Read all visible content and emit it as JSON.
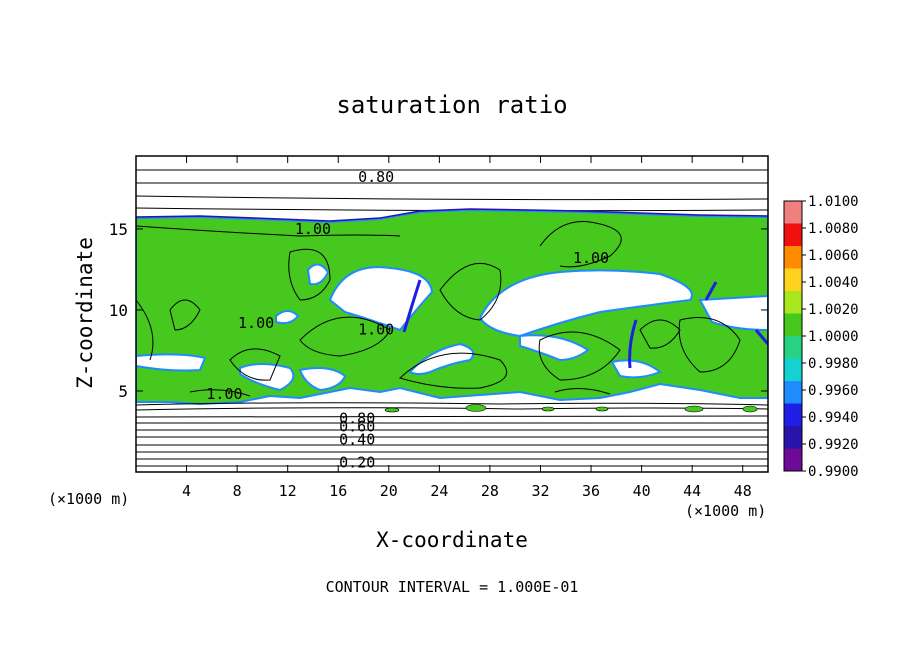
{
  "chart_data": {
    "type": "heatmap",
    "title": "saturation ratio",
    "xlabel": "X-coordinate",
    "ylabel": "Z-coordinate",
    "x_unit_left": "(×1000 m)",
    "x_unit_right": "(×1000 m)",
    "x_ticks": [
      4,
      8,
      12,
      16,
      20,
      24,
      28,
      32,
      36,
      40,
      44,
      48
    ],
    "y_ticks": [
      5,
      10,
      15
    ],
    "xlim": [
      0,
      50
    ],
    "ylim": [
      0,
      19.5
    ],
    "footer": "CONTOUR INTERVAL = 1.000E-01",
    "colorbar": {
      "min": 0.99,
      "max": 1.01,
      "labels": [
        "1.0100",
        "1.0080",
        "1.0060",
        "1.0040",
        "1.0020",
        "1.0000",
        "0.9980",
        "0.9960",
        "0.9940",
        "0.9920",
        "0.9900"
      ],
      "colors": [
        "#f08080",
        "#f01010",
        "#ff8c00",
        "#ffd21e",
        "#a8e61e",
        "#46c81e",
        "#28d282",
        "#14d2d2",
        "#1e8cff",
        "#1e1ee6",
        "#2814aa",
        "#6e0a96"
      ]
    },
    "contour_labels": [
      {
        "text": "0.80",
        "x": 19.0,
        "z": 18.2
      },
      {
        "text": "1.00",
        "x": 14.0,
        "z": 15.0
      },
      {
        "text": "1.00",
        "x": 36.0,
        "z": 13.2
      },
      {
        "text": "1.00",
        "x": 9.5,
        "z": 9.2
      },
      {
        "text": "1.00",
        "x": 19.0,
        "z": 8.8
      },
      {
        "text": "1.00",
        "x": 7.0,
        "z": 4.8
      },
      {
        "text": "0.80",
        "x": 17.5,
        "z": 3.3
      },
      {
        "text": "0.60",
        "x": 17.5,
        "z": 2.8
      },
      {
        "text": "0.40",
        "x": 17.5,
        "z": 2.0
      },
      {
        "text": "0.20",
        "x": 17.5,
        "z": 0.6
      }
    ],
    "colors": {
      "field": "#46c81e",
      "dry_edge": "#1e8cff",
      "very_dry": "#2814aa"
    }
  }
}
